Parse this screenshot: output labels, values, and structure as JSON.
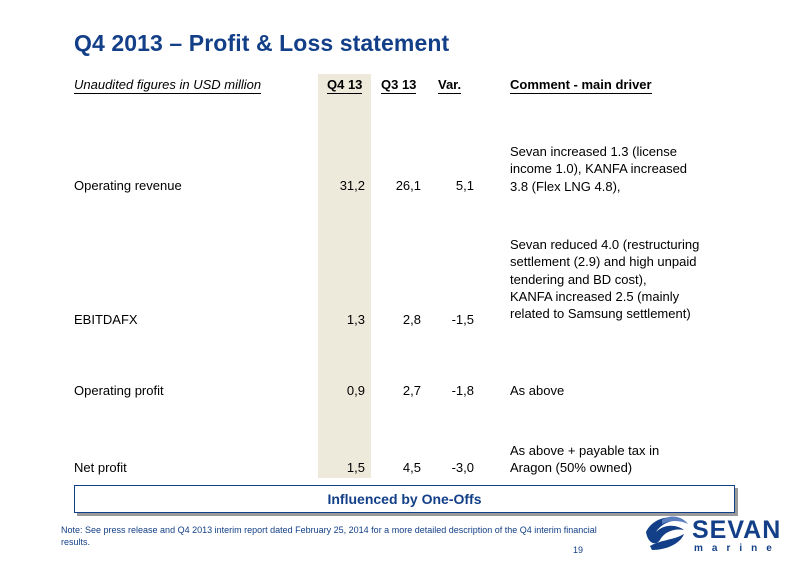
{
  "title": "Q4 2013 – Profit & Loss statement",
  "table": {
    "headers": {
      "label": "Unaudited figures in USD million",
      "q4": "Q4 13",
      "q3": "Q3 13",
      "var": "Var.",
      "comment": "Comment - main driver"
    },
    "rows": [
      {
        "label": "Operating revenue",
        "q4": "31,2",
        "q3": "26,1",
        "var": "5,1",
        "comment": [
          "Sevan increased 1.3 (license",
          "income 1.0), KANFA increased",
          "3.8 (Flex LNG 4.8),"
        ]
      },
      {
        "label": "EBITDAFX",
        "q4": "1,3",
        "q3": "2,8",
        "var": "-1,5",
        "comment": [
          "Sevan reduced 4.0 (restructuring",
          "settlement (2.9) and high unpaid",
          "tendering and BD cost),",
          "KANFA increased 2.5 (mainly",
          "related to Samsung settlement)"
        ]
      },
      {
        "label": "Operating profit",
        "q4": "0,9",
        "q3": "2,7",
        "var": "-1,8",
        "comment": [
          "As above"
        ]
      },
      {
        "label": "Net profit",
        "q4": "1,5",
        "q3": "4,5",
        "var": "-3,0",
        "comment": [
          "As above + payable tax in",
          "Aragon (50% owned)"
        ]
      }
    ]
  },
  "banner": "Influenced by One-Offs",
  "note": "Note: See press release and Q4 2013 interim report dated  February 25, 2014 for a more detailed description of the Q4 interim financial results.",
  "page_number": "19",
  "logo": {
    "name": "SEVAN",
    "tagline": "marine",
    "color": "#123f87"
  },
  "colors": {
    "title": "#123f87",
    "q4_column_shade": "#eeeadb"
  }
}
